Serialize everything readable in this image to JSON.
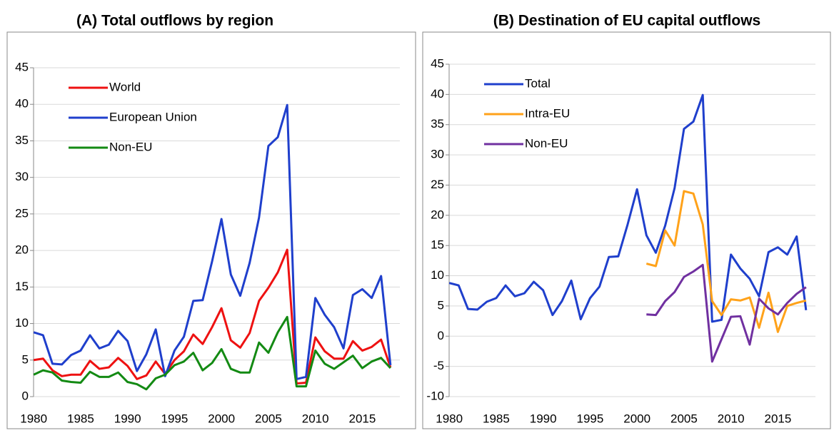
{
  "chart_data": [
    {
      "type": "line",
      "title": "(A) Total outflows by region",
      "x": [
        1980,
        1981,
        1982,
        1983,
        1984,
        1985,
        1986,
        1987,
        1988,
        1989,
        1990,
        1991,
        1992,
        1993,
        1994,
        1995,
        1996,
        1997,
        1998,
        1999,
        2000,
        2001,
        2002,
        2003,
        2004,
        2005,
        2006,
        2007,
        2008,
        2009,
        2010,
        2011,
        2012,
        2013,
        2014,
        2015,
        2016,
        2017,
        2018
      ],
      "series": [
        {
          "name": "World",
          "color": "#ee1111",
          "values": [
            5.0,
            5.2,
            3.6,
            2.8,
            3.0,
            3.0,
            4.9,
            3.8,
            4.0,
            5.3,
            4.2,
            2.4,
            2.9,
            4.8,
            3.1,
            5.0,
            6.2,
            8.5,
            7.2,
            9.5,
            12.1,
            7.7,
            6.7,
            8.7,
            13.1,
            14.9,
            17.0,
            20.1,
            1.8,
            1.9,
            8.1,
            6.2,
            5.2,
            5.2,
            7.6,
            6.3,
            6.8,
            7.8,
            4.0
          ]
        },
        {
          "name": "European Union",
          "color": "#1f3fcc",
          "values": [
            8.8,
            8.4,
            4.5,
            4.4,
            5.7,
            6.3,
            8.4,
            6.6,
            7.1,
            9.0,
            7.6,
            3.5,
            5.8,
            9.2,
            2.8,
            6.3,
            8.2,
            13.1,
            13.2,
            18.5,
            24.3,
            16.7,
            13.8,
            18.3,
            24.5,
            34.3,
            35.5,
            39.9,
            2.4,
            2.7,
            13.5,
            11.2,
            9.5,
            6.6,
            13.9,
            14.7,
            13.5,
            16.5,
            4.3
          ]
        },
        {
          "name": "Non-EU",
          "color": "#138a13",
          "values": [
            3.0,
            3.6,
            3.3,
            2.2,
            2.0,
            1.9,
            3.4,
            2.7,
            2.7,
            3.3,
            2.0,
            1.7,
            1.0,
            2.5,
            3.0,
            4.3,
            4.8,
            6.0,
            3.6,
            4.6,
            6.5,
            3.8,
            3.3,
            3.3,
            7.4,
            6.0,
            8.8,
            10.9,
            1.4,
            1.4,
            6.3,
            4.5,
            3.8,
            4.7,
            5.6,
            3.9,
            4.8,
            5.3,
            3.9
          ]
        }
      ],
      "xlim": [
        1979,
        2019
      ],
      "xticks": [
        1980,
        1985,
        1990,
        1995,
        2000,
        2005,
        2010,
        2015
      ],
      "ylim": [
        0,
        45
      ],
      "yticks": [
        0,
        5,
        10,
        15,
        20,
        25,
        30,
        35,
        40,
        45
      ],
      "grid": true,
      "legend": "upper left"
    },
    {
      "type": "line",
      "title": "(B) Destination of EU capital outflows",
      "x": [
        1980,
        1981,
        1982,
        1983,
        1984,
        1985,
        1986,
        1987,
        1988,
        1989,
        1990,
        1991,
        1992,
        1993,
        1994,
        1995,
        1996,
        1997,
        1998,
        1999,
        2000,
        2001,
        2002,
        2003,
        2004,
        2005,
        2006,
        2007,
        2008,
        2009,
        2010,
        2011,
        2012,
        2013,
        2014,
        2015,
        2016,
        2017,
        2018
      ],
      "series": [
        {
          "name": "Total",
          "color": "#1f3fcc",
          "values": [
            8.8,
            8.4,
            4.5,
            4.4,
            5.7,
            6.3,
            8.4,
            6.6,
            7.1,
            9.0,
            7.6,
            3.5,
            5.8,
            9.2,
            2.8,
            6.3,
            8.2,
            13.1,
            13.2,
            18.5,
            24.3,
            16.7,
            13.8,
            18.3,
            24.5,
            34.3,
            35.5,
            39.9,
            2.4,
            2.7,
            13.5,
            11.2,
            9.5,
            6.6,
            13.9,
            14.7,
            13.5,
            16.5,
            4.3
          ]
        },
        {
          "name": "Intra-EU",
          "color": "#ffa21a",
          "values": [
            null,
            null,
            null,
            null,
            null,
            null,
            null,
            null,
            null,
            null,
            null,
            null,
            null,
            null,
            null,
            null,
            null,
            null,
            null,
            null,
            null,
            12.0,
            11.6,
            17.5,
            15.0,
            24.0,
            23.6,
            18.5,
            5.8,
            3.5,
            6.1,
            5.9,
            6.4,
            1.4,
            7.2,
            0.7,
            5.0,
            5.5,
            5.9
          ]
        },
        {
          "name": "Non-EU",
          "color": "#7030a0",
          "values": [
            null,
            null,
            null,
            null,
            null,
            null,
            null,
            null,
            null,
            null,
            null,
            null,
            null,
            null,
            null,
            null,
            null,
            null,
            null,
            null,
            null,
            3.6,
            3.5,
            5.8,
            7.3,
            9.8,
            10.7,
            11.8,
            -4.2,
            -0.5,
            3.2,
            3.3,
            -1.4,
            6.2,
            4.6,
            3.6,
            5.5,
            7.0,
            8.1
          ]
        }
      ],
      "xlim": [
        1979,
        2019
      ],
      "xticks": [
        1980,
        1985,
        1990,
        1995,
        2000,
        2005,
        2010,
        2015
      ],
      "ylim": [
        -10,
        45
      ],
      "yticks": [
        -10,
        -5,
        0,
        5,
        10,
        15,
        20,
        25,
        30,
        35,
        40,
        45
      ],
      "grid": true,
      "legend": "upper left"
    }
  ]
}
